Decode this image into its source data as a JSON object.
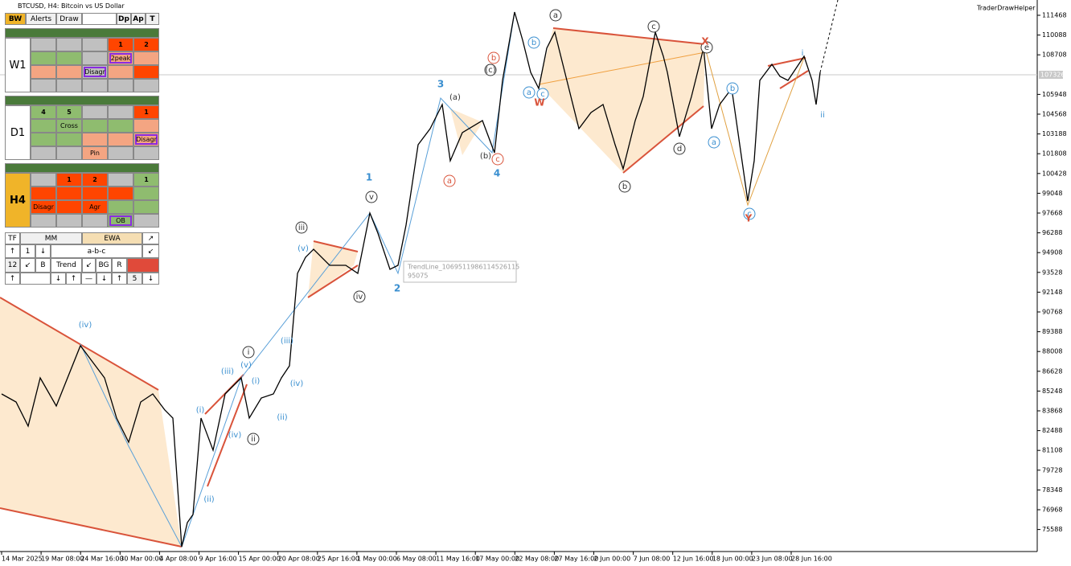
{
  "window": {
    "title": "BTCUSD, H4:  Bitcoin vs US Dollar",
    "indicator": "TraderDrawHelper"
  },
  "toolbar": [
    "BW",
    "Alerts",
    "Draw",
    "Dp",
    "Ap",
    "T"
  ],
  "panels": [
    {
      "timeframe": "W1",
      "labels": [
        "1",
        "2",
        "2peak",
        "Disagr"
      ]
    },
    {
      "timeframe": "D1",
      "labels": [
        "4",
        "5",
        "1",
        "Cross",
        "Disagr",
        "Pin"
      ]
    },
    {
      "timeframe": "H4",
      "labels": [
        "1",
        "2",
        "1",
        "Disagr",
        "Agr",
        "OB"
      ]
    }
  ],
  "controls": [
    "TF",
    "MM",
    "EWA",
    "↗",
    "↑",
    "1",
    "↓",
    "a-b-c",
    "↙",
    "12",
    "↙",
    "B",
    "Trend",
    "↙",
    "BG",
    "R",
    "↑",
    "↓",
    "↑",
    "—",
    "↓",
    "↑",
    "5",
    "↓"
  ],
  "price_axis": [
    111468,
    110088,
    108708,
    105948,
    104568,
    103188,
    101808,
    100428,
    99048,
    97668,
    96288,
    94908,
    93528,
    92148,
    90768,
    89388,
    88008,
    86628,
    85248,
    83868,
    82488,
    81108,
    79728,
    78348,
    76968,
    75588
  ],
  "current_price": "107326",
  "time_axis": [
    "14 Mar 2025",
    "19 Mar 08:00",
    "24 Mar 16:00",
    "30 Mar 00:00",
    "4 Apr 08:00",
    "9 Apr 16:00",
    "15 Apr 00:00",
    "20 Apr 08:00",
    "25 Apr 16:00",
    "1 May 00:00",
    "6 May 08:00",
    "11 May 16:00",
    "17 May 00:00",
    "22 May 08:00",
    "27 May 16:00",
    "2 Jun 00:00",
    "7 Jun 08:00",
    "12 Jun 16:00",
    "18 Jun 00:00",
    "23 Jun 08:00",
    "28 Jun 16:00"
  ],
  "tooltip": [
    "TrendLine_1069511986114526115",
    "95075"
  ],
  "wave_labels": [
    "a",
    "(c)",
    "(a)",
    "(b)",
    "c",
    "e",
    "d",
    "b",
    "v",
    "iii",
    "iv",
    "i",
    "ii",
    "3",
    "1",
    "2",
    "4",
    "b",
    "a",
    "c",
    "b",
    "a",
    "c",
    "i",
    "ii",
    "(v)",
    "(iv)",
    "(iii)",
    "(iv)",
    "(iii)",
    "(v)",
    "(i)",
    "(i)",
    "(ii)",
    "(iv)",
    "(ii)",
    "b",
    "c",
    "a",
    "W",
    "X",
    "Y"
  ]
}
